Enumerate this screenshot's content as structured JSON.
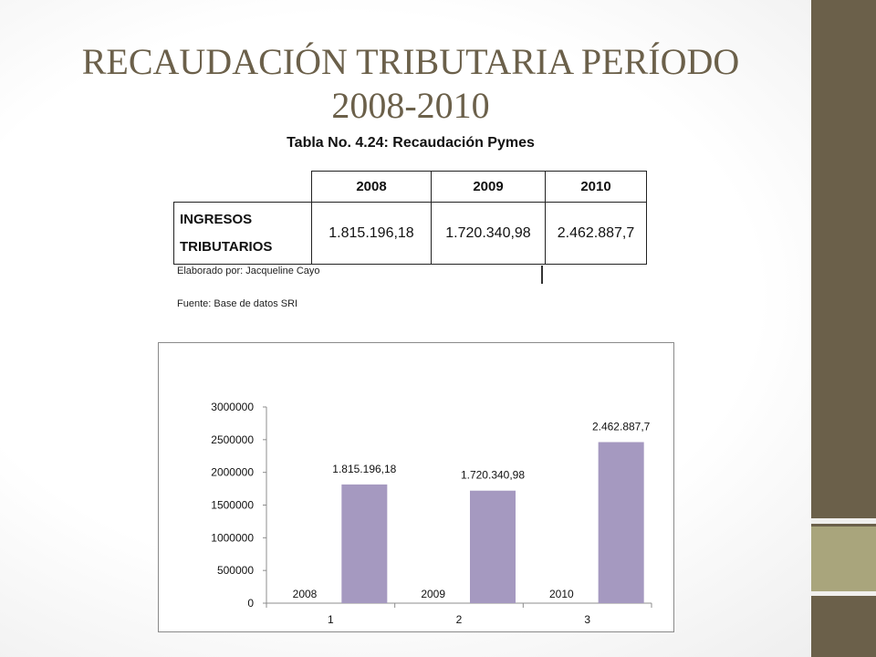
{
  "slide": {
    "title": "RECAUDACIÓN TRIBUTARIA PERÍODO 2008-2010"
  },
  "table": {
    "caption": "Tabla No. 4.24: Recaudación Pymes",
    "columns": [
      "2008",
      "2009",
      "2010"
    ],
    "row_label_line1": "INGRESOS",
    "row_label_line2": "TRIBUTARIOS",
    "values": [
      "1.815.196,18",
      "1.720.340,98",
      "2.462.887,7"
    ],
    "credit_author": "Elaborado por: Jacqueline Cayo",
    "credit_source": "Fuente: Base de datos SRI"
  },
  "colors": {
    "title": "#6b604a",
    "bar": "#a599c0",
    "side_bar": "#6b604a",
    "side_accent": "#a9a57c"
  },
  "chart_data": {
    "type": "bar",
    "categories": [
      "1",
      "2",
      "3"
    ],
    "year_labels": [
      "2008",
      "2009",
      "2010"
    ],
    "values": [
      1815196.18,
      1720340.98,
      2462887.7
    ],
    "data_labels": [
      "1.815.196,18",
      "1.720.340,98",
      "2.462.887,7"
    ],
    "y_ticks": [
      "0",
      "500000",
      "1000000",
      "1500000",
      "2000000",
      "2500000",
      "3000000"
    ],
    "ylim": [
      0,
      3000000
    ],
    "grid": false,
    "legend": "none"
  }
}
